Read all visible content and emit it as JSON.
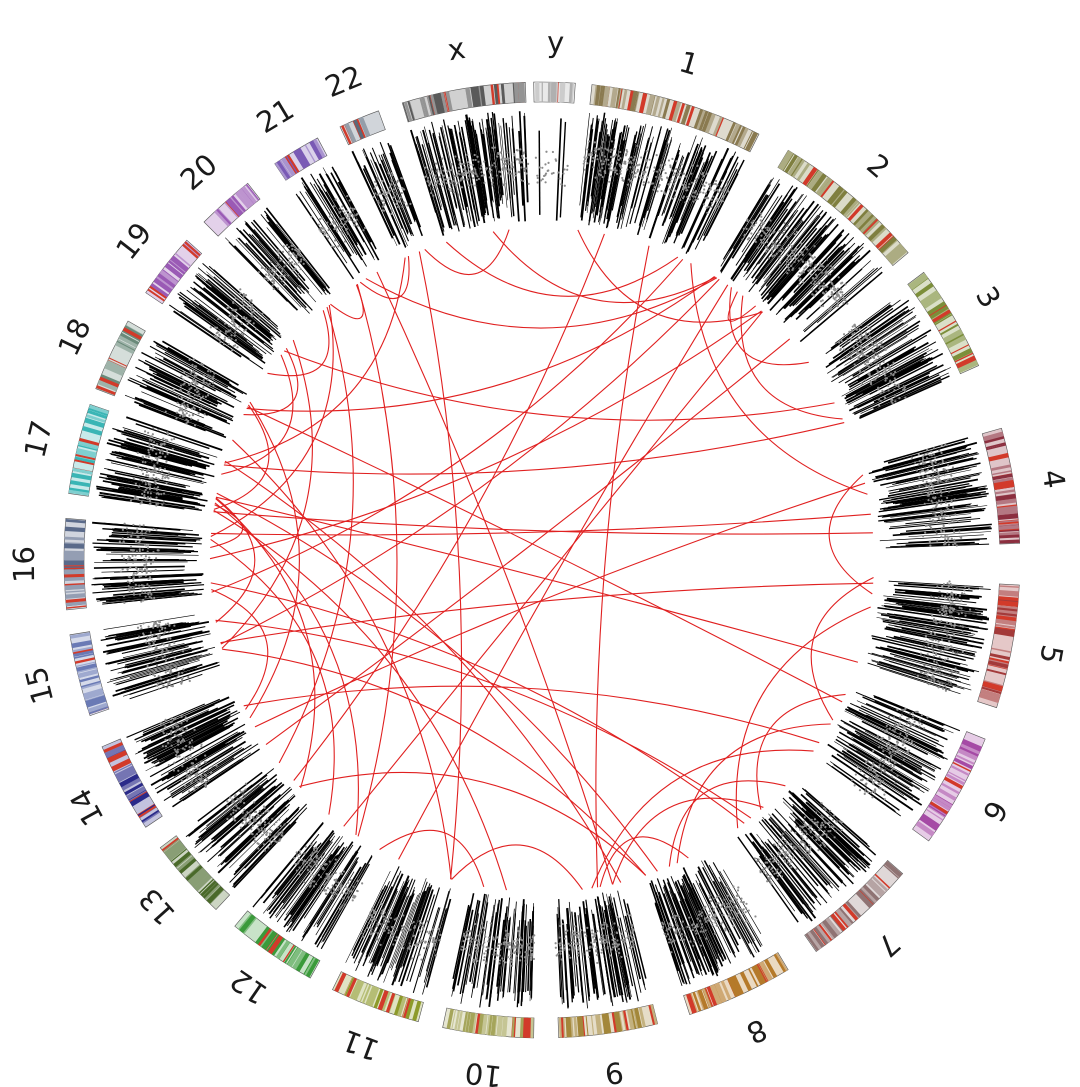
{
  "chromosomes": [
    {
      "label": "1",
      "color": "#8a7a50"
    },
    {
      "label": "2",
      "color": "#7f7f3f"
    },
    {
      "label": "3",
      "color": "#7c8f3a"
    },
    {
      "label": "4",
      "color": "#8c2f3f"
    },
    {
      "label": "5",
      "color": "#a33a3a"
    },
    {
      "label": "6",
      "color": "#a54aa5"
    },
    {
      "label": "7",
      "color": "#8f7373"
    },
    {
      "label": "8",
      "color": "#b57a2a"
    },
    {
      "label": "9",
      "color": "#a3873a"
    },
    {
      "label": "10",
      "color": "#a5a55a"
    },
    {
      "label": "11",
      "color": "#8d9a2a"
    },
    {
      "label": "12",
      "color": "#3a9a3a"
    },
    {
      "label": "13",
      "color": "#4a6a2a"
    },
    {
      "label": "14",
      "color": "#2a2a8a"
    },
    {
      "label": "15",
      "color": "#6a7ab5"
    },
    {
      "label": "16",
      "color": "#5a6a8a"
    },
    {
      "label": "17",
      "color": "#3ab5b5"
    },
    {
      "label": "18",
      "color": "#6a8a7a"
    },
    {
      "label": "19",
      "color": "#9a5ab5"
    },
    {
      "label": "20",
      "color": "#9a5ab5"
    },
    {
      "label": "21",
      "color": "#7a5ab5"
    },
    {
      "label": "22",
      "color": "#5a6a7a"
    },
    {
      "label": "x",
      "color": "#5a5a5a"
    },
    {
      "label": "y",
      "color": "#b0b0b0"
    }
  ],
  "colors": {
    "link": "#e02020",
    "track_line": "#000000",
    "scatter_point": "#8c8c8c",
    "highlight_band": "#d23a2a"
  }
}
